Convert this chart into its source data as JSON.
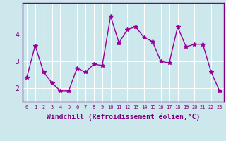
{
  "x": [
    0,
    1,
    2,
    3,
    4,
    5,
    6,
    7,
    8,
    9,
    10,
    11,
    12,
    13,
    14,
    15,
    16,
    17,
    18,
    19,
    20,
    21,
    22,
    23
  ],
  "y": [
    2.4,
    3.6,
    2.6,
    2.2,
    1.9,
    1.9,
    2.75,
    2.6,
    2.9,
    2.85,
    4.7,
    3.7,
    4.2,
    4.3,
    3.9,
    3.75,
    3.0,
    2.95,
    4.3,
    3.55,
    3.65,
    3.65,
    2.6,
    1.9
  ],
  "line_color": "#990099",
  "marker": "*",
  "markersize": 4,
  "linewidth": 1.0,
  "xlabel": "Windchill (Refroidissement éolien,°C)",
  "xlabel_fontsize": 7,
  "yticks": [
    2,
    3,
    4
  ],
  "xtick_labels": [
    "0",
    "1",
    "2",
    "3",
    "4",
    "5",
    "6",
    "7",
    "8",
    "9",
    "10",
    "11",
    "12",
    "13",
    "14",
    "15",
    "16",
    "17",
    "18",
    "19",
    "20",
    "21",
    "22",
    "23"
  ],
  "ylim": [
    1.5,
    5.2
  ],
  "xlim": [
    -0.5,
    23.5
  ],
  "bg_color": "#cce8ec",
  "grid_color": "#ffffff",
  "tick_color": "#800080",
  "spine_color": "#800080",
  "ytick_fontsize": 7,
  "xtick_fontsize": 5
}
